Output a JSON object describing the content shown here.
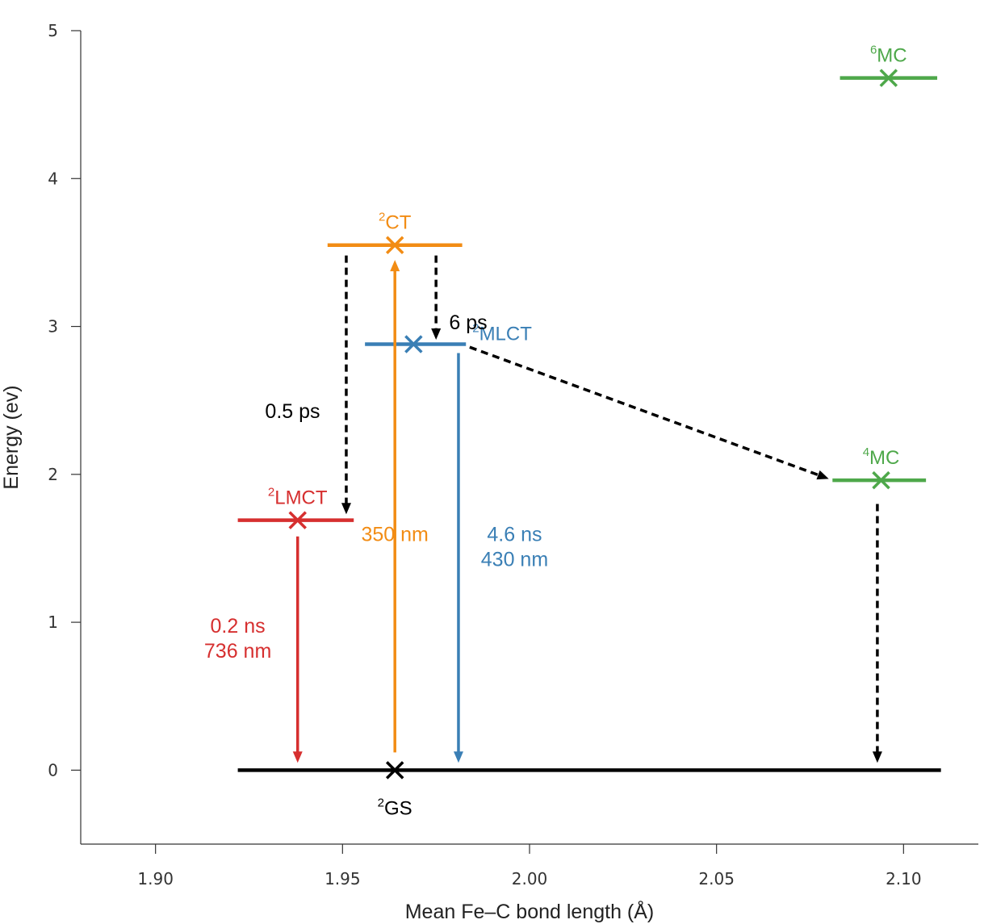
{
  "chart_data": {
    "type": "energy-level diagram",
    "xlabel": "Mean Fe–C bond length (Å)",
    "ylabel": "Energy (ev)",
    "xlim": [
      1.88,
      2.12
    ],
    "ylim": [
      -0.5,
      5.0
    ],
    "xticks": [
      1.9,
      1.95,
      2.0,
      2.05,
      2.1
    ],
    "xtick_labels": [
      "1.90",
      "1.95",
      "2.00",
      "2.05",
      "2.10"
    ],
    "yticks": [
      0,
      1,
      2,
      3,
      4,
      5
    ],
    "ytick_labels": [
      "0",
      "1",
      "2",
      "3",
      "4",
      "5"
    ],
    "colors": {
      "black": "#000000",
      "orange": "#f28c14",
      "blue": "#3a7fb5",
      "red": "#d62f2f",
      "green": "#4ea84a"
    },
    "levels": [
      {
        "name": "GS",
        "sup": "2",
        "base": "GS",
        "color": "black",
        "x": 1.964,
        "energy": 0.0,
        "x_from": 1.922,
        "x_to": 2.11,
        "label_pos": "below"
      },
      {
        "name": "LMCT",
        "sup": "2",
        "base": "LMCT",
        "color": "red",
        "x": 1.938,
        "energy": 1.69,
        "x_from": 1.922,
        "x_to": 1.953,
        "label_pos": "above"
      },
      {
        "name": "CT",
        "sup": "2",
        "base": "CT",
        "color": "orange",
        "x": 1.964,
        "energy": 3.55,
        "x_from": 1.946,
        "x_to": 1.982,
        "label_pos": "above"
      },
      {
        "name": "MLCT",
        "sup": "2",
        "base": "MLCT",
        "color": "blue",
        "x": 1.969,
        "energy": 2.88,
        "x_from": 1.956,
        "x_to": 1.983,
        "label_pos": "right"
      },
      {
        "name": "4MC",
        "sup": "4",
        "base": "MC",
        "color": "green",
        "x": 2.094,
        "energy": 1.96,
        "x_from": 2.081,
        "x_to": 2.106,
        "label_pos": "above"
      },
      {
        "name": "6MC",
        "sup": "6",
        "base": "MC",
        "color": "green",
        "x": 2.096,
        "energy": 4.68,
        "x_from": 2.083,
        "x_to": 2.109,
        "label_pos": "above"
      }
    ],
    "transitions": [
      {
        "name": "excitation-350",
        "style": "solid",
        "color": "orange",
        "x1": 1.964,
        "y1": 0.12,
        "x2": 1.964,
        "y2": 3.45,
        "label_lines": [
          "350 nm"
        ],
        "label_x": 1.964,
        "label_y": 1.55,
        "label_anchor": "middle"
      },
      {
        "name": "emission-mlct",
        "style": "solid",
        "color": "blue",
        "x1": 1.981,
        "y1": 2.82,
        "x2": 1.981,
        "y2": 0.05,
        "label_lines": [
          "4.6 ns",
          "430 nm"
        ],
        "label_x": 1.996,
        "label_y": 1.55,
        "label_anchor": "middle"
      },
      {
        "name": "emission-lmct",
        "style": "solid",
        "color": "red",
        "x1": 1.938,
        "y1": 1.58,
        "x2": 1.938,
        "y2": 0.05,
        "label_lines": [
          "0.2 ns",
          "736 nm"
        ],
        "label_x": 1.922,
        "label_y": 0.93,
        "label_anchor": "middle"
      },
      {
        "name": "ct-to-lmct",
        "style": "dashed",
        "color": "black",
        "x1": 1.951,
        "y1": 3.48,
        "x2": 1.951,
        "y2": 1.73,
        "label_lines": [
          "0.5 ps"
        ],
        "label_x": 1.944,
        "label_y": 2.38,
        "label_anchor": "end"
      },
      {
        "name": "ct-to-mlct",
        "style": "dashed",
        "color": "black",
        "x1": 1.975,
        "y1": 3.48,
        "x2": 1.975,
        "y2": 2.91,
        "label_lines": [
          "6 ps"
        ],
        "label_x": 1.9785,
        "label_y": 2.98,
        "label_anchor": "start"
      },
      {
        "name": "mlct-to-4mc",
        "style": "dashed",
        "color": "black",
        "x1": 1.984,
        "y1": 2.86,
        "x2": 2.08,
        "y2": 1.97,
        "label_lines": [],
        "label_x": null,
        "label_y": null,
        "label_anchor": "middle"
      },
      {
        "name": "4mc-to-gs",
        "style": "dashed",
        "color": "black",
        "x1": 2.093,
        "y1": 1.8,
        "x2": 2.093,
        "y2": 0.05,
        "label_lines": [],
        "label_x": null,
        "label_y": null,
        "label_anchor": "middle"
      }
    ]
  }
}
